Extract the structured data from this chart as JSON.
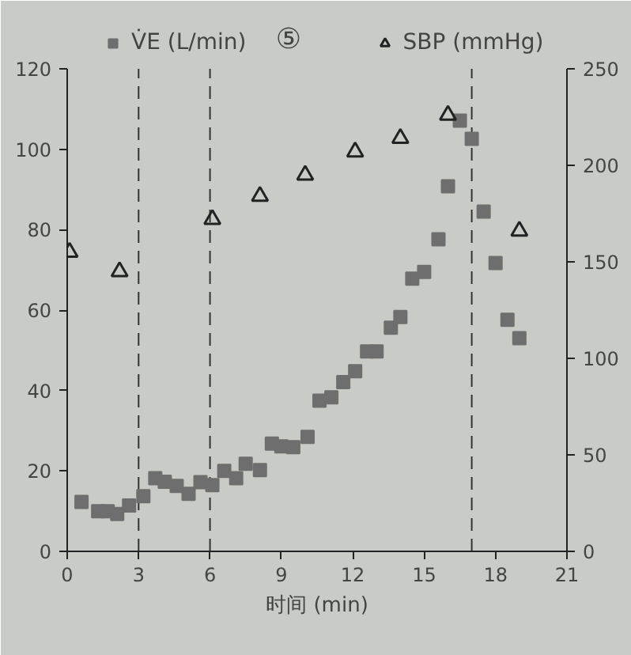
{
  "chart_data": {
    "type": "scatter",
    "xlabel": "时间 (min)",
    "annotations": [
      "⑤"
    ],
    "legend": "top",
    "grid": false,
    "xlim": [
      0,
      21
    ],
    "xticks": [
      0,
      3,
      6,
      9,
      12,
      15,
      18,
      21
    ],
    "ylim": [
      0,
      120
    ],
    "yticks": [
      0,
      20,
      40,
      60,
      80,
      100,
      120
    ],
    "y2lim": [
      0,
      250
    ],
    "y2ticks": [
      0,
      50,
      100,
      150,
      200,
      250
    ],
    "ref_lines": [
      {
        "axis": "x",
        "value": 3,
        "line_style": "dashed",
        "color": "#333333"
      },
      {
        "axis": "x",
        "value": 6,
        "line_style": "dashed",
        "color": "#333333"
      },
      {
        "axis": "x",
        "value": 17,
        "line_style": "dashed",
        "color": "#333333"
      }
    ],
    "series": [
      {
        "name": "V̇E (L/min)",
        "color": "#6e6e6e",
        "marker": "square",
        "x": [
          0.6,
          1.3,
          1.7,
          2.1,
          2.6,
          3.2,
          3.7,
          4.1,
          4.6,
          5.1,
          5.6,
          6.1,
          6.6,
          7.1,
          7.5,
          8.1,
          8.6,
          9.0,
          9.5,
          10.1,
          10.6,
          11.1,
          11.6,
          12.1,
          12.6,
          13.0,
          13.6,
          14.0,
          14.5,
          15.0,
          15.6,
          16.0,
          16.5,
          17.0,
          17.5,
          18.0,
          18.5,
          19.0
        ],
        "values": [
          12.3,
          10,
          10,
          9.3,
          11.4,
          13.7,
          18.2,
          17.3,
          16.3,
          14.3,
          17.2,
          16.5,
          20,
          18.2,
          21.8,
          20.2,
          26.8,
          26.1,
          25.9,
          28.5,
          37.5,
          38.3,
          42.1,
          44.8,
          49.7,
          49.7,
          55.6,
          58.3,
          67.8,
          69.5,
          77.6,
          90.8,
          107.1,
          102.6,
          84.5,
          71.7,
          57.6,
          53
        ]
      },
      {
        "name": "SBP (mmHg)",
        "color": "#222222",
        "marker": "triangle",
        "axis": "y2",
        "x": [
          0.1,
          2.2,
          6.1,
          8.1,
          10.0,
          12.1,
          14.0,
          16.0,
          19.0
        ],
        "values": [
          155,
          145,
          172,
          184,
          195,
          207,
          214,
          226,
          166
        ]
      }
    ]
  }
}
